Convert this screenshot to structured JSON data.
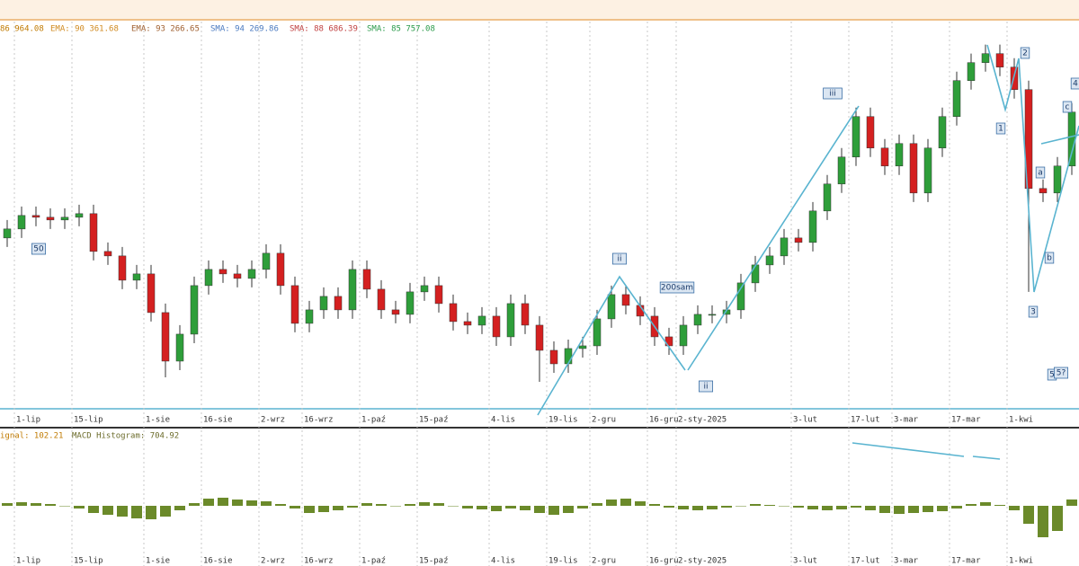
{
  "chart_data": [
    {
      "type": "candlestick",
      "indicators": [
        "86 964.08",
        "EMA: 90 361.68",
        "EMA: 93 266.65",
        "SMA: 94 269.86",
        "SMA: 88 686.39",
        "SMA: 85 757.08"
      ],
      "annotations": [
        "50",
        "ii",
        "200sam",
        "ii",
        "iii",
        "1",
        "2",
        "3",
        "a",
        "b",
        "c",
        "4",
        "5",
        "5?"
      ],
      "categories": [
        null,
        "1-lip",
        null,
        null,
        null,
        "15-lip",
        null,
        null,
        null,
        null,
        "1-sie",
        null,
        null,
        null,
        "16-sie",
        null,
        null,
        null,
        "2-wrz",
        null,
        null,
        "16-wrz",
        null,
        null,
        null,
        "1-paź",
        null,
        null,
        null,
        "15-paź",
        null,
        null,
        null,
        null,
        "4-lis",
        null,
        null,
        null,
        "19-lis",
        null,
        null,
        "2-gru",
        null,
        null,
        null,
        "16-gru",
        null,
        "2-sty-2025",
        null,
        null,
        null,
        null,
        null,
        null,
        null,
        "3-lut",
        null,
        null,
        null,
        "17-lut",
        null,
        null,
        "3-mar",
        null,
        null,
        null,
        "17-mar",
        null,
        null,
        null,
        "1-kwi",
        null,
        null,
        null,
        null
      ],
      "open": [
        80800,
        82000,
        83800,
        83560,
        83200,
        83560,
        84040,
        79000,
        78400,
        75160,
        76000,
        70840,
        64360,
        67960,
        74440,
        76600,
        76000,
        75400,
        76600,
        78760,
        74440,
        69400,
        71200,
        73000,
        71200,
        76600,
        73960,
        71200,
        70600,
        73600,
        74440,
        72040,
        69640,
        69160,
        70360,
        67600,
        72040,
        69160,
        65800,
        64000,
        66040,
        66400,
        70000,
        73240,
        71800,
        70360,
        67600,
        66400,
        69160,
        70600,
        70600,
        71200,
        74800,
        77200,
        78400,
        80800,
        80200,
        84400,
        88000,
        91600,
        97000,
        92800,
        90400,
        93400,
        86800,
        92800,
        97000,
        101800,
        104200,
        105400,
        103600,
        100600,
        87400,
        86800,
        90400
      ],
      "high": [
        83200,
        85000,
        85000,
        84760,
        84760,
        85240,
        85240,
        80200,
        79600,
        77200,
        77200,
        72040,
        69160,
        75640,
        77800,
        77800,
        77200,
        77800,
        79960,
        79960,
        75640,
        72400,
        74200,
        74200,
        77800,
        77800,
        75160,
        72400,
        74800,
        75640,
        75640,
        73240,
        70840,
        71560,
        71560,
        73240,
        73240,
        70360,
        67000,
        67240,
        67600,
        71200,
        74440,
        74440,
        73000,
        71560,
        68800,
        70360,
        71800,
        71800,
        72400,
        76000,
        78400,
        79600,
        82000,
        82000,
        85600,
        89200,
        92800,
        98200,
        98200,
        94000,
        94600,
        94600,
        94000,
        98200,
        103000,
        105400,
        106600,
        106600,
        104800,
        101800,
        88600,
        91600,
        98800
      ],
      "low": [
        79600,
        80800,
        82360,
        82000,
        82000,
        82360,
        77800,
        77200,
        73960,
        73960,
        69640,
        62200,
        63160,
        66760,
        73240,
        74800,
        74200,
        74200,
        75400,
        73240,
        68200,
        68200,
        70000,
        70000,
        70000,
        72760,
        70000,
        69400,
        69400,
        72400,
        70840,
        68440,
        67960,
        67960,
        66400,
        66400,
        67960,
        61600,
        62800,
        62800,
        64840,
        65200,
        68800,
        70600,
        69160,
        66400,
        65200,
        65200,
        67960,
        69400,
        69400,
        70000,
        73600,
        76000,
        77200,
        79000,
        79000,
        83200,
        86800,
        90400,
        91600,
        89200,
        89200,
        85600,
        85600,
        91600,
        95800,
        100600,
        103000,
        102400,
        99400,
        73600,
        85600,
        85600,
        89200
      ],
      "close": [
        82000,
        83800,
        83560,
        83200,
        83560,
        84040,
        79000,
        78400,
        75160,
        76000,
        70840,
        64360,
        67960,
        74440,
        76600,
        76000,
        75400,
        76600,
        78760,
        74440,
        69400,
        71200,
        73000,
        71200,
        76600,
        73960,
        71200,
        70600,
        73600,
        74440,
        72040,
        69640,
        69160,
        70360,
        67600,
        72040,
        69160,
        65800,
        64000,
        66040,
        66400,
        70000,
        73240,
        71800,
        70360,
        67600,
        66400,
        69160,
        70600,
        70600,
        71200,
        74800,
        77200,
        78400,
        80800,
        80200,
        84400,
        88000,
        91600,
        97000,
        92800,
        90400,
        93400,
        86800,
        92800,
        97000,
        101800,
        104200,
        105400,
        103600,
        100600,
        87400,
        86800,
        90400,
        97600
      ],
      "up_color": "#2e9e3a",
      "down_color": "#d42020",
      "ylim": [
        58000,
        108000
      ]
    },
    {
      "type": "bar",
      "indicators": [
        "ignal: 102.21",
        "MACD Histogram: 704.92"
      ],
      "values": [
        300,
        400,
        300,
        200,
        0,
        -300,
        -800,
        -1000,
        -1200,
        -1400,
        -1500,
        -1200,
        -500,
        300,
        800,
        900,
        700,
        600,
        500,
        200,
        -300,
        -800,
        -700,
        -500,
        -200,
        300,
        200,
        0,
        200,
        400,
        300,
        0,
        -300,
        -400,
        -600,
        -300,
        -500,
        -800,
        -1000,
        -800,
        -300,
        300,
        700,
        800,
        500,
        200,
        -200,
        -400,
        -500,
        -400,
        -200,
        0,
        200,
        100,
        0,
        -200,
        -400,
        -500,
        -400,
        -200,
        -500,
        -800,
        -900,
        -800,
        -700,
        -600,
        -300,
        200,
        400,
        100,
        -500,
        -2000,
        -3500,
        -2800,
        704.92
      ],
      "color": "#6b8a2a",
      "ylim": [
        -6200,
        8300
      ]
    }
  ]
}
